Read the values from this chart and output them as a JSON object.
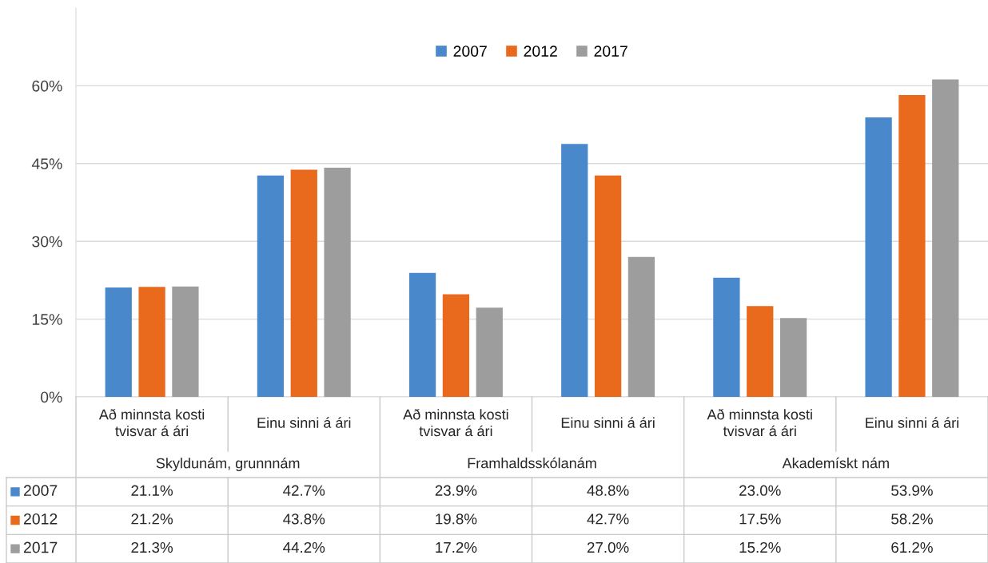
{
  "chart_data": {
    "type": "bar",
    "categories": [
      "Að minnsta kosti\ntvisvar á ári",
      "Einu sinni á ári",
      "Að minnsta kosti\ntvisvar á ári",
      "Einu sinni á ári",
      "Að minnsta kosti\ntvisvar á ári",
      "Einu sinni á ári"
    ],
    "series": [
      {
        "name": "2007",
        "color": "#4a88cc",
        "values": [
          21.1,
          42.7,
          23.9,
          48.8,
          23.0,
          53.9
        ],
        "value_labels": [
          "21.1%",
          "42.7%",
          "23.9%",
          "48.8%",
          "23.0%",
          "53.9%"
        ]
      },
      {
        "name": "2012",
        "color": "#e96a1c",
        "values": [
          21.2,
          43.8,
          19.8,
          42.7,
          17.5,
          58.2
        ],
        "value_labels": [
          "21.2%",
          "43.8%",
          "19.8%",
          "42.7%",
          "17.5%",
          "58.2%"
        ]
      },
      {
        "name": "2017",
        "color": "#9d9d9d",
        "values": [
          21.3,
          44.2,
          17.2,
          27.0,
          15.2,
          61.2
        ],
        "value_labels": [
          "21.3%",
          "44.2%",
          "17.2%",
          "27.0%",
          "15.2%",
          "61.2%"
        ]
      }
    ],
    "annotations": [
      "Skyldunám, grunnnám",
      "Framhaldsskólanám",
      "Akademískt nám"
    ],
    "ylim": [
      0,
      75
    ],
    "yticks": [
      {
        "value": 0,
        "label": "0%"
      },
      {
        "value": 15,
        "label": "15%"
      },
      {
        "value": 30,
        "label": "30%"
      },
      {
        "value": 45,
        "label": "45%"
      },
      {
        "value": 60,
        "label": "60%"
      }
    ],
    "grid": "y",
    "legend": "top"
  }
}
